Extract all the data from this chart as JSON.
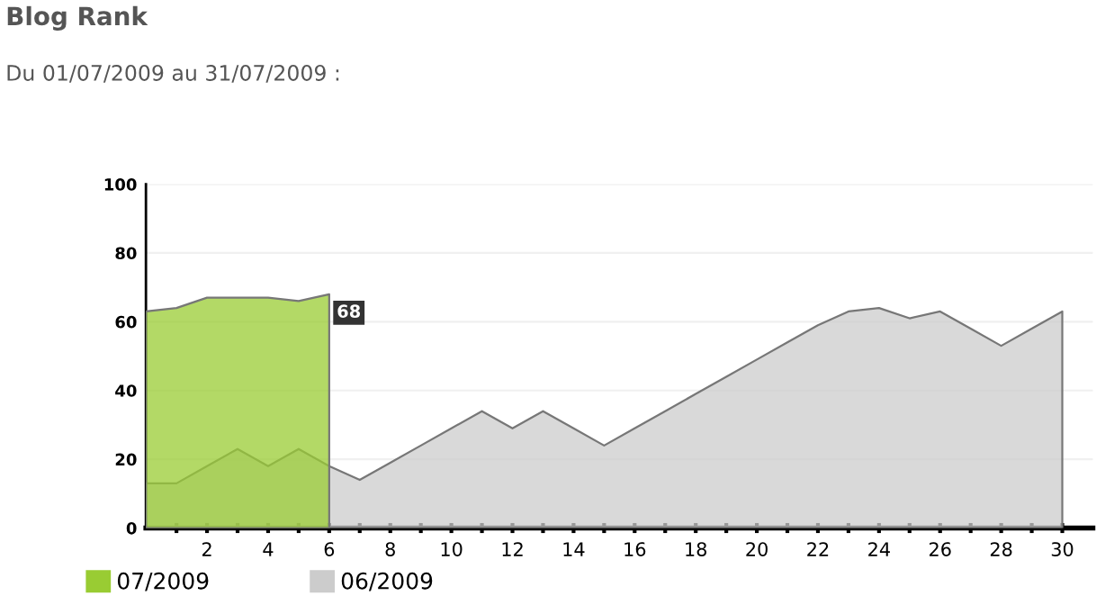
{
  "chart_data": {
    "type": "area",
    "title": "Blog Rank",
    "subtitle": "Du 01/07/2009 au 31/07/2009 :",
    "series": [
      {
        "name": "07/2009",
        "color": "#99cc33",
        "x": [
          0,
          1,
          2,
          3,
          4,
          5,
          6
        ],
        "values": [
          63,
          64,
          67,
          67,
          67,
          66,
          68
        ],
        "value_labels": [
          null,
          null,
          null,
          null,
          null,
          null,
          "68"
        ]
      },
      {
        "name": "06/2009",
        "color": "#cccccc",
        "x": [
          0,
          1,
          2,
          3,
          4,
          5,
          6,
          7,
          8,
          9,
          10,
          11,
          12,
          13,
          14,
          15,
          16,
          17,
          18,
          19,
          20,
          21,
          22,
          23,
          24,
          25,
          26,
          27,
          28,
          29,
          30
        ],
        "values": [
          13,
          13,
          18,
          23,
          18,
          23,
          18,
          14,
          19,
          24,
          29,
          34,
          29,
          34,
          29,
          24,
          29,
          34,
          39,
          44,
          49,
          54,
          59,
          63,
          64,
          61,
          63,
          58,
          53,
          58,
          63
        ]
      }
    ],
    "xlim": [
      0,
      31
    ],
    "xticks": [
      {
        "value": 1,
        "label": null
      },
      2,
      {
        "value": 3,
        "label": null
      },
      4,
      {
        "value": 5,
        "label": null
      },
      6,
      {
        "value": 7,
        "label": null
      },
      8,
      {
        "value": 9,
        "label": null
      },
      10,
      {
        "value": 11,
        "label": null
      },
      12,
      {
        "value": 13,
        "label": null
      },
      14,
      {
        "value": 15,
        "label": null
      },
      16,
      {
        "value": 17,
        "label": null
      },
      18,
      {
        "value": 19,
        "label": null
      },
      20,
      {
        "value": 21,
        "label": null
      },
      22,
      {
        "value": 23,
        "label": null
      },
      24,
      {
        "value": 25,
        "label": null
      },
      26,
      {
        "value": 27,
        "label": null
      },
      28,
      {
        "value": 29,
        "label": null
      },
      30
    ],
    "ylim": [
      0,
      100
    ],
    "yticks": [
      0,
      20,
      40,
      60,
      80,
      100
    ],
    "grid": "y",
    "legend": "bottom left"
  }
}
